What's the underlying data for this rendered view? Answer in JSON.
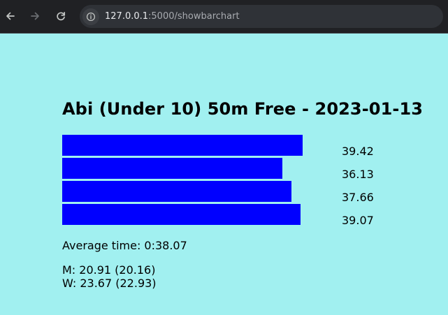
{
  "browser": {
    "url_host": "127.0.0.1",
    "url_path": ":5000/showbarchart"
  },
  "page": {
    "title": "Abi (Under 10) 50m Free - 2023-01-13",
    "average_label": "Average time: 0:38.07",
    "records": [
      "M: 20.91 (20.16)",
      "W: 23.67 (22.93)"
    ]
  },
  "chart_data": {
    "type": "bar",
    "orientation": "horizontal",
    "values": [
      39.42,
      36.13,
      37.66,
      39.07
    ],
    "value_labels": [
      "39.42",
      "36.13",
      "37.66",
      "39.07"
    ],
    "bar_color": "#0000ff",
    "xlim": [
      0,
      45.19
    ]
  },
  "colors": {
    "page_background": "#a1f0f0",
    "bar": "#0000ff"
  }
}
